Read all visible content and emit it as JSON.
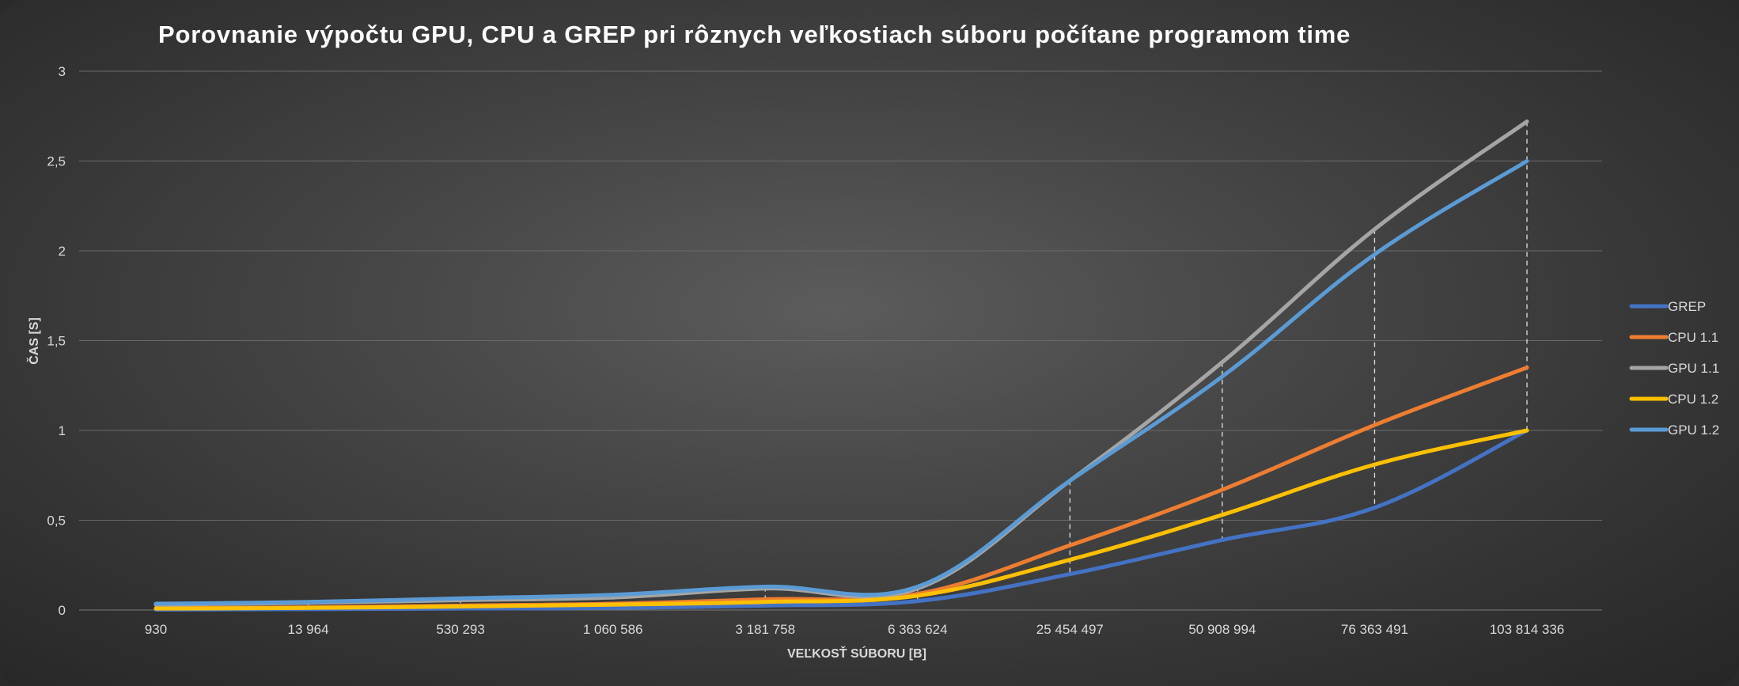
{
  "chart_data": {
    "type": "line",
    "title": "Porovnanie výpočtu GPU, CPU a GREP pri rôznych veľkostiach súboru počítane programom time",
    "xlabel": "VEĽKOSŤ SÚBORU [B]",
    "ylabel": "ČAS [S]",
    "ylim": [
      0,
      3
    ],
    "yticks": [
      "0",
      "0,5",
      "1",
      "1,5",
      "2",
      "2,5",
      "3"
    ],
    "categories": [
      "930",
      "13 964",
      "530 293",
      "1 060 586",
      "3 181 758",
      "6 363 624",
      "25 454 497",
      "50 908 994",
      "76 363 491",
      "103 814 336"
    ],
    "grid": true,
    "drop_lines": true,
    "legend_position": "right",
    "series": [
      {
        "name": "GREP",
        "color": "#4472C4",
        "values": [
          0.003,
          0.005,
          0.008,
          0.012,
          0.025,
          0.05,
          0.2,
          0.39,
          0.57,
          1.0
        ]
      },
      {
        "name": "CPU 1.1",
        "color": "#ED7D31",
        "values": [
          0.01,
          0.015,
          0.025,
          0.035,
          0.06,
          0.09,
          0.36,
          0.67,
          1.03,
          1.35
        ]
      },
      {
        "name": "GPU 1.1",
        "color": "#A5A5A5",
        "values": [
          0.03,
          0.04,
          0.055,
          0.07,
          0.12,
          0.12,
          0.72,
          1.38,
          2.12,
          2.72
        ]
      },
      {
        "name": "CPU 1.2",
        "color": "#FFC000",
        "values": [
          0.008,
          0.012,
          0.02,
          0.03,
          0.045,
          0.08,
          0.28,
          0.53,
          0.81,
          1.0
        ]
      },
      {
        "name": "GPU 1.2",
        "color": "#5B9BD5",
        "values": [
          0.035,
          0.045,
          0.065,
          0.085,
          0.13,
          0.13,
          0.72,
          1.3,
          1.98,
          2.5
        ]
      }
    ]
  }
}
